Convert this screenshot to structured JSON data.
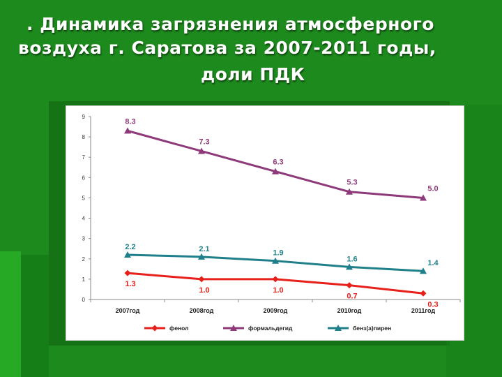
{
  "slide": {
    "title_line1": ". Динамика загрязнения атмосферного",
    "title_line2": "воздуха г. Саратова за 2007-2011 годы,",
    "title_line3": "доли ПДК"
  },
  "chart_data": {
    "type": "line",
    "categories": [
      "2007год",
      "2008год",
      "2009год",
      "2010год",
      "2011год"
    ],
    "ylim": [
      0,
      9
    ],
    "yticks": [
      "0",
      "1",
      "2",
      "3",
      "4",
      "5",
      "6",
      "7",
      "8",
      "9"
    ],
    "grid": false,
    "legend_position": "bottom",
    "series": [
      {
        "name": "фенол",
        "values": [
          1.3,
          1.0,
          1.0,
          0.7,
          0.3
        ],
        "labels": [
          "1.3",
          "1.0",
          "1.0",
          "0.7",
          "0.3"
        ],
        "color": "#e8201b",
        "marker": "diamond"
      },
      {
        "name": "формальдегид",
        "values": [
          8.3,
          7.3,
          6.3,
          5.3,
          5.0
        ],
        "labels": [
          "8.3",
          "7.3",
          "6.3",
          "5.3",
          "5.0"
        ],
        "color": "#8e3a7a",
        "marker": "triangle"
      },
      {
        "name": "бенз(а)пирен",
        "values": [
          2.2,
          2.1,
          1.9,
          1.6,
          1.4
        ],
        "labels": [
          "2.2",
          "2.1",
          "1.9",
          "1.6",
          "1.4"
        ],
        "color": "#1f7f8a",
        "marker": "triangle"
      }
    ]
  },
  "colors": {
    "background": "#1d8a1d",
    "panel": "#ffffff"
  }
}
